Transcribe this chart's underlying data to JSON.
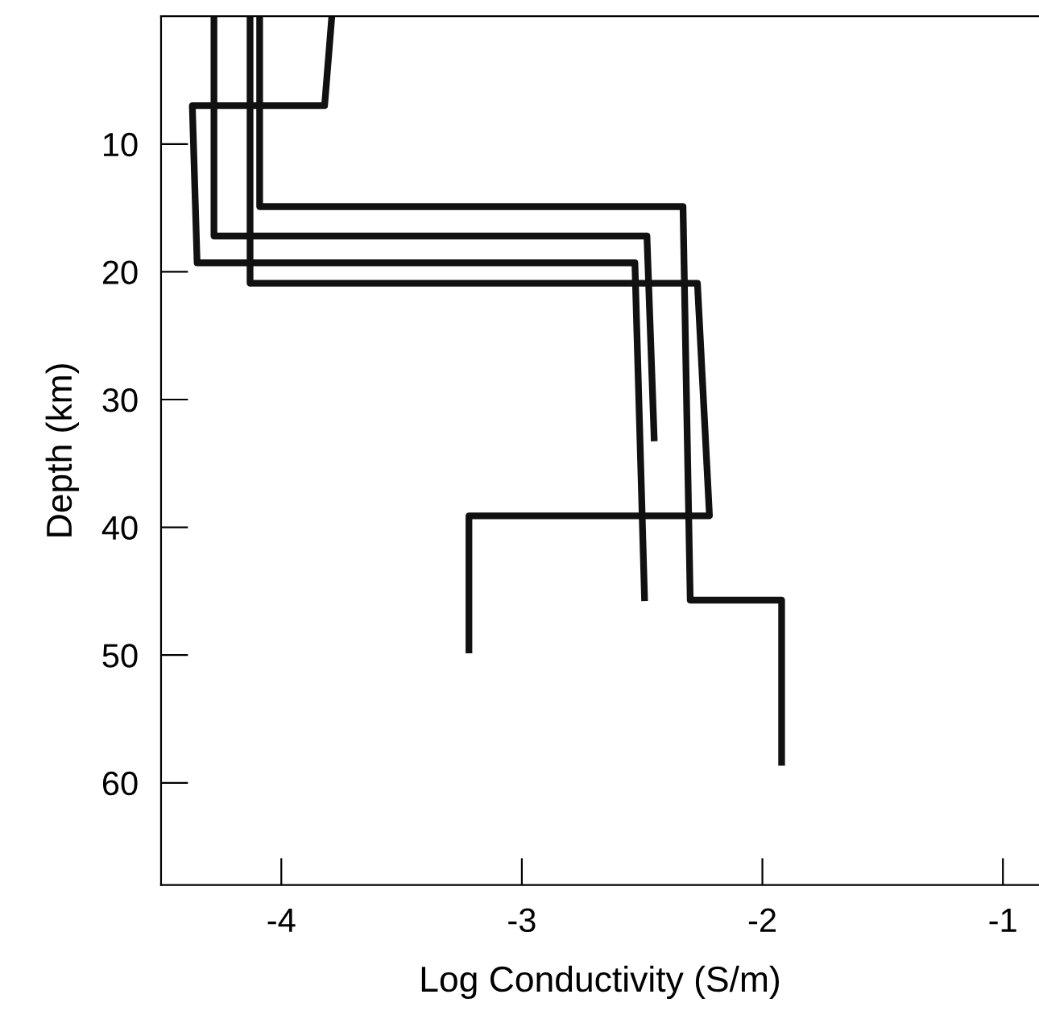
{
  "chart_data": {
    "type": "line",
    "xlabel": "Log Conductivity (S/m)",
    "ylabel": "Depth (km)",
    "xlim": [
      -4.5,
      -0.85
    ],
    "ylim": [
      68,
      0
    ],
    "xticks": [
      -4,
      -3,
      -2,
      -1
    ],
    "yticks": [
      10,
      20,
      30,
      40,
      50,
      60
    ],
    "grid": false,
    "legend": false,
    "marker": "none",
    "line_style": "solid",
    "series": [
      {
        "color": "#111111",
        "x": [
          -3.79,
          -3.82,
          -4.37,
          -4.35,
          -2.53,
          -2.49
        ],
        "values": [
          0,
          7,
          7,
          19.3,
          19.3,
          45.5
        ]
      },
      {
        "color": "#111111",
        "x": [
          -4.28,
          -4.28,
          -2.48,
          -2.45
        ],
        "values": [
          0,
          17.2,
          17.2,
          33
        ]
      },
      {
        "color": "#111111",
        "x": [
          -4.09,
          -4.09,
          -2.33,
          -2.3,
          -1.92,
          -1.92
        ],
        "values": [
          0,
          14.9,
          14.9,
          45.7,
          45.7,
          58.4
        ]
      },
      {
        "color": "#111111",
        "x": [
          -4.13,
          -4.13,
          -2.27,
          -2.22,
          -3.22,
          -3.22
        ],
        "values": [
          0,
          20.9,
          20.9,
          39.1,
          39.1,
          49.6
        ]
      }
    ]
  }
}
